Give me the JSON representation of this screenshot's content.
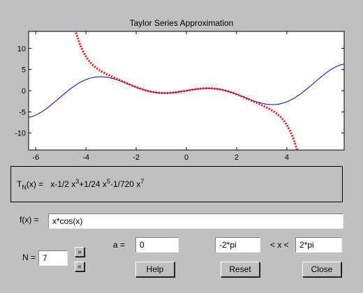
{
  "window": {
    "title": "Taylor Series Approximation"
  },
  "chart_data": {
    "type": "line",
    "title": "Taylor Series Approximation",
    "xlim": [
      -6.2832,
      6.2832
    ],
    "ylim": [
      -14,
      14
    ],
    "xticks": [
      -6,
      -4,
      -2,
      0,
      2,
      4
    ],
    "yticks": [
      -10,
      -5,
      0,
      5,
      10
    ],
    "series": [
      {
        "name": "",
        "function": "x*cos(x)",
        "color": "#0000cc",
        "style": "solid"
      },
      {
        "name": "",
        "function": "x-1/2 x^3+1/24 x^5-1/720 x^7",
        "color": "#ff0000",
        "style": "dotted"
      }
    ]
  },
  "taylor": {
    "T": "T",
    "N": "N",
    "lhs_tail": "(x) =",
    "terms": [
      {
        "text": "x-1/2 x",
        "exp": "3"
      },
      {
        "text": "+1/24 x",
        "exp": "5"
      },
      {
        "text": "-1/720 x",
        "exp": "7"
      }
    ]
  },
  "controls": {
    "f_label": "f(x) =",
    "f_value": "x*cos(x)",
    "n_label": "N =",
    "n_value": "7",
    "inc_label": "»",
    "dec_label": "«",
    "a_label": "a =",
    "a_value": "0",
    "xmin_value": "-2*pi",
    "range_label": "< x <",
    "xmax_value": "2*pi",
    "help_label": "Help",
    "reset_label": "Reset",
    "close_label": "Close"
  }
}
